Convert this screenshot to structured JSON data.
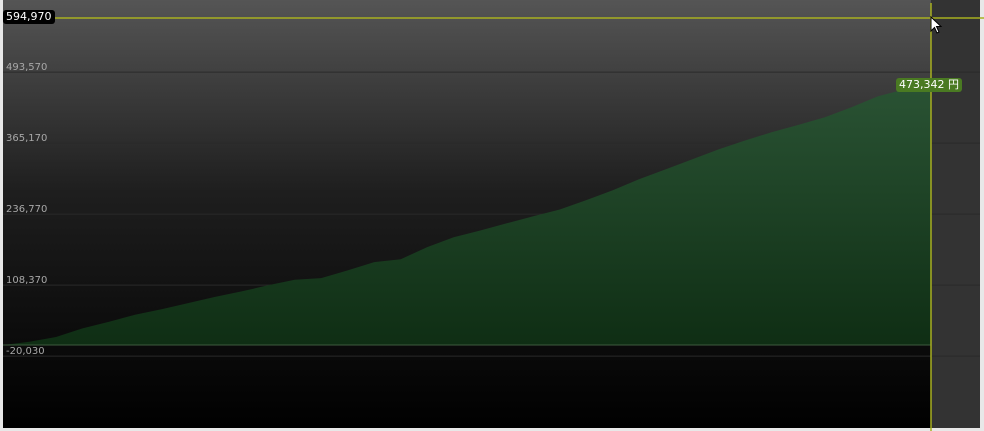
{
  "chart_data": {
    "type": "area",
    "y_ticks": [
      493570,
      365170,
      236770,
      108370,
      -20030
    ],
    "y_tick_labels": [
      "493,570",
      "365,170",
      "236,770",
      "108,370",
      "-20,030"
    ],
    "values": [
      0,
      6000,
      14500,
      30000,
      42000,
      55000,
      65000,
      76000,
      87000,
      97000,
      108000,
      118000,
      121000,
      135000,
      150000,
      155000,
      177000,
      195000,
      207000,
      220000,
      233000,
      245000,
      262000,
      280000,
      300000,
      318000,
      336000,
      354000,
      370000,
      385000,
      398000,
      412000,
      430000,
      450000,
      462000,
      473342
    ],
    "unit": "円",
    "crosshair_value_label": "594,970",
    "last_value_label": "473,342 円",
    "grid": true,
    "colors": {
      "area": "#1e4a28",
      "crosshair": "#a8b020",
      "value_badge": "#4a7a22"
    }
  }
}
